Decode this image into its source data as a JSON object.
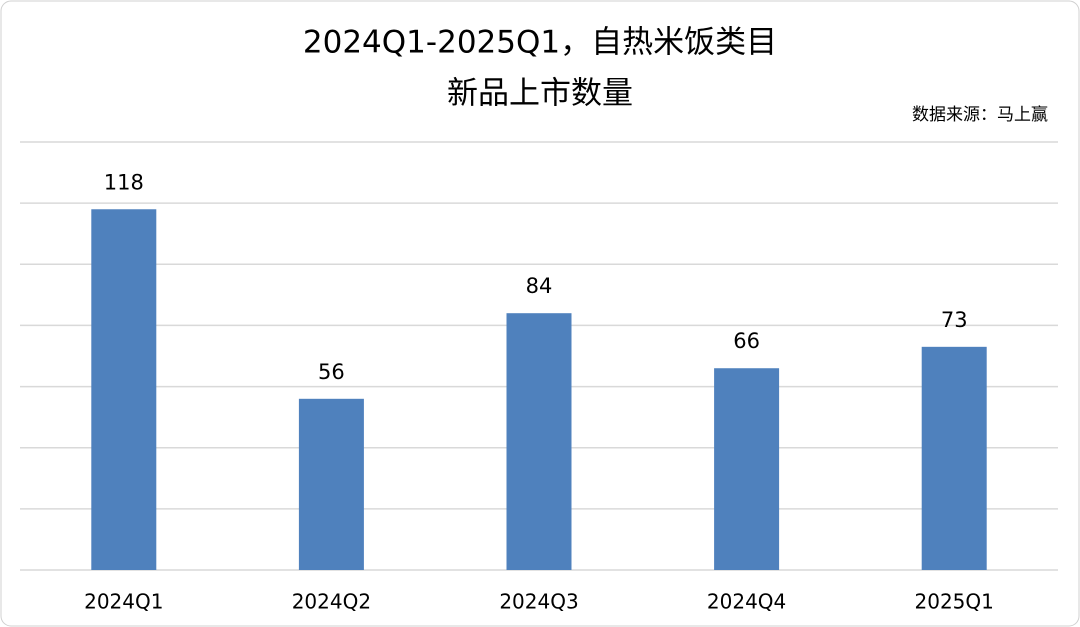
{
  "chart_data": {
    "type": "bar",
    "title": [
      "2024Q1-2025Q1，自热米饭类目",
      "新品上市数量"
    ],
    "source": "数据来源：马上赢",
    "categories": [
      "2024Q1",
      "2024Q2",
      "2024Q3",
      "2024Q4",
      "2025Q1"
    ],
    "values": [
      118,
      56,
      84,
      66,
      73
    ],
    "color": "#4f81bd",
    "ylim": [
      0,
      140
    ],
    "yticks": [
      0,
      20,
      40,
      60,
      80,
      100,
      120,
      140
    ],
    "grid": true
  }
}
